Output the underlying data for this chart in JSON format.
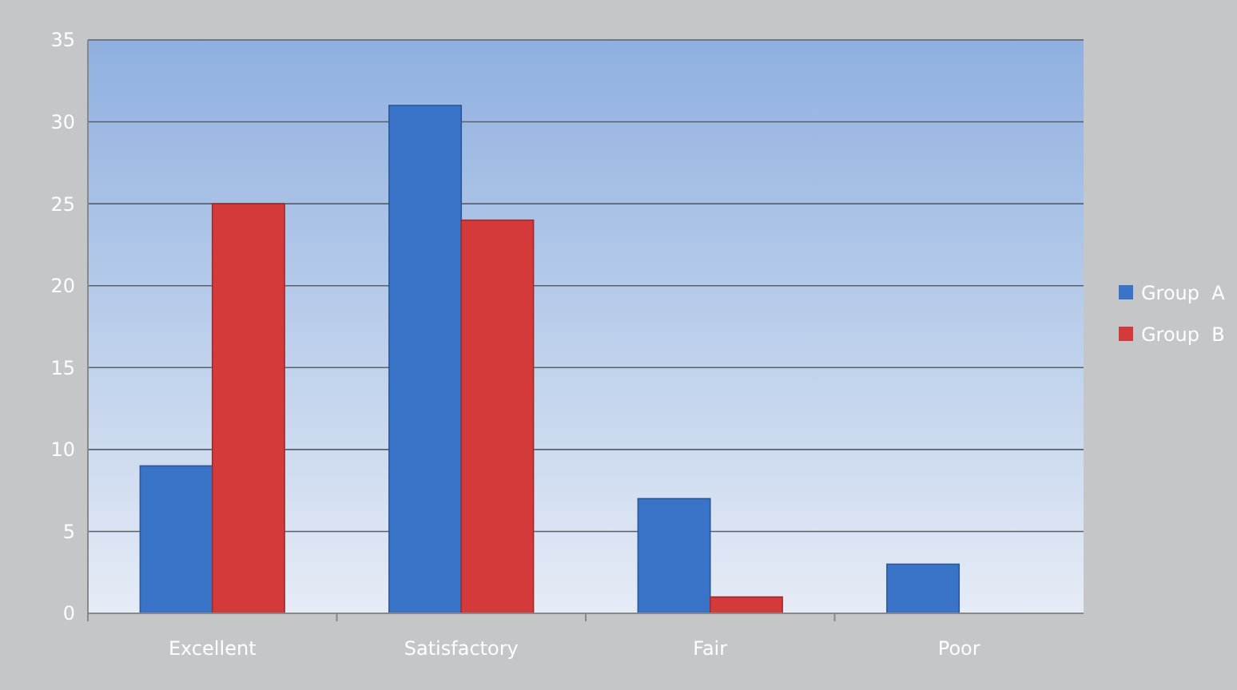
{
  "chart_data": {
    "type": "bar",
    "categories": [
      "Excellent",
      "Satisfactory",
      "Fair",
      "Poor"
    ],
    "series": [
      {
        "name": "Group  A",
        "color": "#3a74c8",
        "values": [
          9,
          31,
          7,
          3
        ]
      },
      {
        "name": "Group  B",
        "color": "#d43a3a",
        "values": [
          25,
          24,
          1,
          0
        ]
      }
    ],
    "ylim": [
      0,
      35
    ],
    "yticks": [
      0,
      5,
      10,
      15,
      20,
      25,
      30,
      35
    ],
    "grid": "y",
    "legend": "right"
  }
}
